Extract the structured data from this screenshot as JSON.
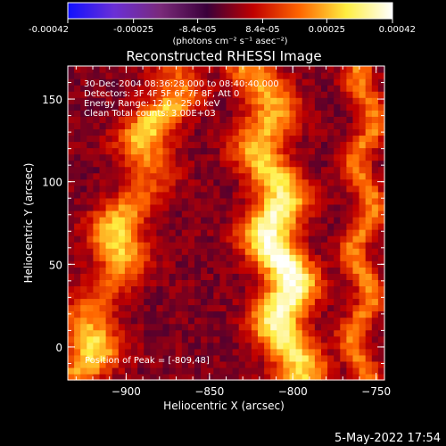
{
  "colorbar": {
    "ticks": [
      "-0.00042",
      "-0.00025",
      "-8.4e-05",
      "8.4e-05",
      "0.00025",
      "0.00042"
    ],
    "tick_values": [
      -0.00042,
      -0.00025,
      -8.4e-05,
      8.4e-05,
      0.00025,
      0.00042
    ],
    "range": [
      -0.00042,
      0.00042
    ],
    "unit_label": "(photons cm⁻² s⁻¹ asec⁻²)",
    "colors": [
      "#1010ff",
      "#6a2fd6",
      "#7a2a7a",
      "#3a003a",
      "#c00000",
      "#ff6600",
      "#ffee40",
      "#ffffff"
    ]
  },
  "chart_data": {
    "type": "heatmap",
    "title": "Reconstructed RHESSI Image",
    "xlabel": "Heliocentric X (arcsec)",
    "ylabel": "Heliocentric Y (arcsec)",
    "xlim": [
      -935,
      -745
    ],
    "ylim": [
      -20,
      170
    ],
    "x_ticks": [
      -900,
      -850,
      -800,
      -750
    ],
    "x_tick_labels": [
      "−900",
      "−850",
      "−800",
      "−750"
    ],
    "y_ticks": [
      0,
      50,
      100,
      150
    ],
    "y_tick_labels": [
      "0",
      "50",
      "100",
      "150"
    ],
    "bright_bands": [
      {
        "x_at_bottom": -930,
        "x_at_top": -870,
        "peak": 0.0003
      },
      {
        "x_at_bottom": -800,
        "x_at_top": -820,
        "peak": 0.00042
      },
      {
        "x_at_bottom": -760,
        "x_at_top": -755,
        "peak": 0.0002
      }
    ],
    "annotations": [
      "30-Dec-2004 08:36:28.000 to 08:40:40.000",
      "Detectors: 3F 4F 5F 6F 7F 8F, Att 0",
      "Energy Range: 12.0 - 25.0 keV",
      "Clean     Total counts: 3.00E+03"
    ],
    "peak_label": "Position of Peak = [-809,48]",
    "peak_position": [
      -809,
      48
    ]
  },
  "footer": {
    "date": "5-May-2022 17:54"
  }
}
